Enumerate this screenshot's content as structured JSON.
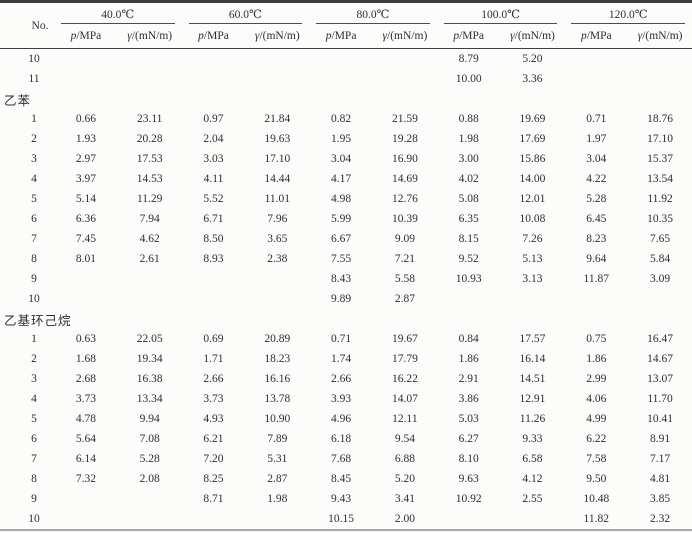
{
  "page": {
    "background": "#fcfcfb",
    "text_color": "#2e2e2e",
    "rule_dark": "#3e3e3e",
    "rule_mid": "#4c4c4c",
    "rule_light": "#a9a9a9"
  },
  "table": {
    "header": {
      "no_label": "No.",
      "temp_groups": [
        "40.0℃",
        "60.0℃",
        "80.0℃",
        "100.0℃",
        "120.0℃"
      ],
      "pressure_symbol": "p",
      "pressure_unit": "/MPa",
      "tension_symbol": "γ",
      "tension_unit": "/(mN/m)"
    },
    "rows": [
      {
        "type": "data",
        "no": "10",
        "cells": [
          "",
          "",
          "",
          "",
          "",
          "",
          "8.79",
          "5.20",
          "",
          ""
        ]
      },
      {
        "type": "data",
        "no": "11",
        "cells": [
          "",
          "",
          "",
          "",
          "",
          "",
          "10.00",
          "3.36",
          "",
          ""
        ]
      },
      {
        "type": "section",
        "label": "乙苯"
      },
      {
        "type": "data",
        "no": "1",
        "cells": [
          "0.66",
          "23.11",
          "0.97",
          "21.84",
          "0.82",
          "21.59",
          "0.88",
          "19.69",
          "0.71",
          "18.76"
        ]
      },
      {
        "type": "data",
        "no": "2",
        "cells": [
          "1.93",
          "20.28",
          "2.04",
          "19.63",
          "1.95",
          "19.28",
          "1.98",
          "17.69",
          "1.97",
          "17.10"
        ]
      },
      {
        "type": "data",
        "no": "3",
        "cells": [
          "2.97",
          "17.53",
          "3.03",
          "17.10",
          "3.04",
          "16.90",
          "3.00",
          "15.86",
          "3.04",
          "15.37"
        ]
      },
      {
        "type": "data",
        "no": "4",
        "cells": [
          "3.97",
          "14.53",
          "4.11",
          "14.44",
          "4.17",
          "14.69",
          "4.02",
          "14.00",
          "4.22",
          "13.54"
        ]
      },
      {
        "type": "data",
        "no": "5",
        "cells": [
          "5.14",
          "11.29",
          "5.52",
          "11.01",
          "4.98",
          "12.76",
          "5.08",
          "12.01",
          "5.28",
          "11.92"
        ]
      },
      {
        "type": "data",
        "no": "6",
        "cells": [
          "6.36",
          "7.94",
          "6.71",
          "7.96",
          "5.99",
          "10.39",
          "6.35",
          "10.08",
          "6.45",
          "10.35"
        ]
      },
      {
        "type": "data",
        "no": "7",
        "cells": [
          "7.45",
          "4.62",
          "8.50",
          "3.65",
          "6.67",
          "9.09",
          "8.15",
          "7.26",
          "8.23",
          "7.65"
        ]
      },
      {
        "type": "data",
        "no": "8",
        "cells": [
          "8.01",
          "2.61",
          "8.93",
          "2.38",
          "7.55",
          "7.21",
          "9.52",
          "5.13",
          "9.64",
          "5.84"
        ]
      },
      {
        "type": "data",
        "no": "9",
        "cells": [
          "",
          "",
          "",
          "",
          "8.43",
          "5.58",
          "10.93",
          "3.13",
          "11.87",
          "3.09"
        ]
      },
      {
        "type": "data",
        "no": "10",
        "cells": [
          "",
          "",
          "",
          "",
          "9.89",
          "2.87",
          "",
          "",
          "",
          ""
        ]
      },
      {
        "type": "section",
        "label": "乙基环己烷"
      },
      {
        "type": "data",
        "no": "1",
        "cells": [
          "0.63",
          "22.05",
          "0.69",
          "20.89",
          "0.71",
          "19.67",
          "0.84",
          "17.57",
          "0.75",
          "16.47"
        ]
      },
      {
        "type": "data",
        "no": "2",
        "cells": [
          "1.68",
          "19.34",
          "1.71",
          "18.23",
          "1.74",
          "17.79",
          "1.86",
          "16.14",
          "1.86",
          "14.67"
        ]
      },
      {
        "type": "data",
        "no": "3",
        "cells": [
          "2.68",
          "16.38",
          "2.66",
          "16.16",
          "2.66",
          "16.22",
          "2.91",
          "14.51",
          "2.99",
          "13.07"
        ]
      },
      {
        "type": "data",
        "no": "4",
        "cells": [
          "3.73",
          "13.34",
          "3.73",
          "13.78",
          "3.93",
          "14.07",
          "3.86",
          "12.91",
          "4.06",
          "11.70"
        ]
      },
      {
        "type": "data",
        "no": "5",
        "cells": [
          "4.78",
          "9.94",
          "4.93",
          "10.90",
          "4.96",
          "12.11",
          "5.03",
          "11.26",
          "4.99",
          "10.41"
        ]
      },
      {
        "type": "data",
        "no": "6",
        "cells": [
          "5.64",
          "7.08",
          "6.21",
          "7.89",
          "6.18",
          "9.54",
          "6.27",
          "9.33",
          "6.22",
          "8.91"
        ]
      },
      {
        "type": "data",
        "no": "7",
        "cells": [
          "6.14",
          "5.28",
          "7.20",
          "5.31",
          "7.68",
          "6.88",
          "8.10",
          "6.58",
          "7.58",
          "7.17"
        ]
      },
      {
        "type": "data",
        "no": "8",
        "cells": [
          "7.32",
          "2.08",
          "8.25",
          "2.87",
          "8.45",
          "5.20",
          "9.63",
          "4.12",
          "9.50",
          "4.81"
        ]
      },
      {
        "type": "data",
        "no": "9",
        "cells": [
          "",
          "",
          "8.71",
          "1.98",
          "9.43",
          "3.41",
          "10.92",
          "2.55",
          "10.48",
          "3.85"
        ]
      },
      {
        "type": "data",
        "no": "10",
        "cells": [
          "",
          "",
          "",
          "",
          "10.15",
          "2.00",
          "",
          "",
          "11.82",
          "2.32"
        ]
      }
    ]
  }
}
